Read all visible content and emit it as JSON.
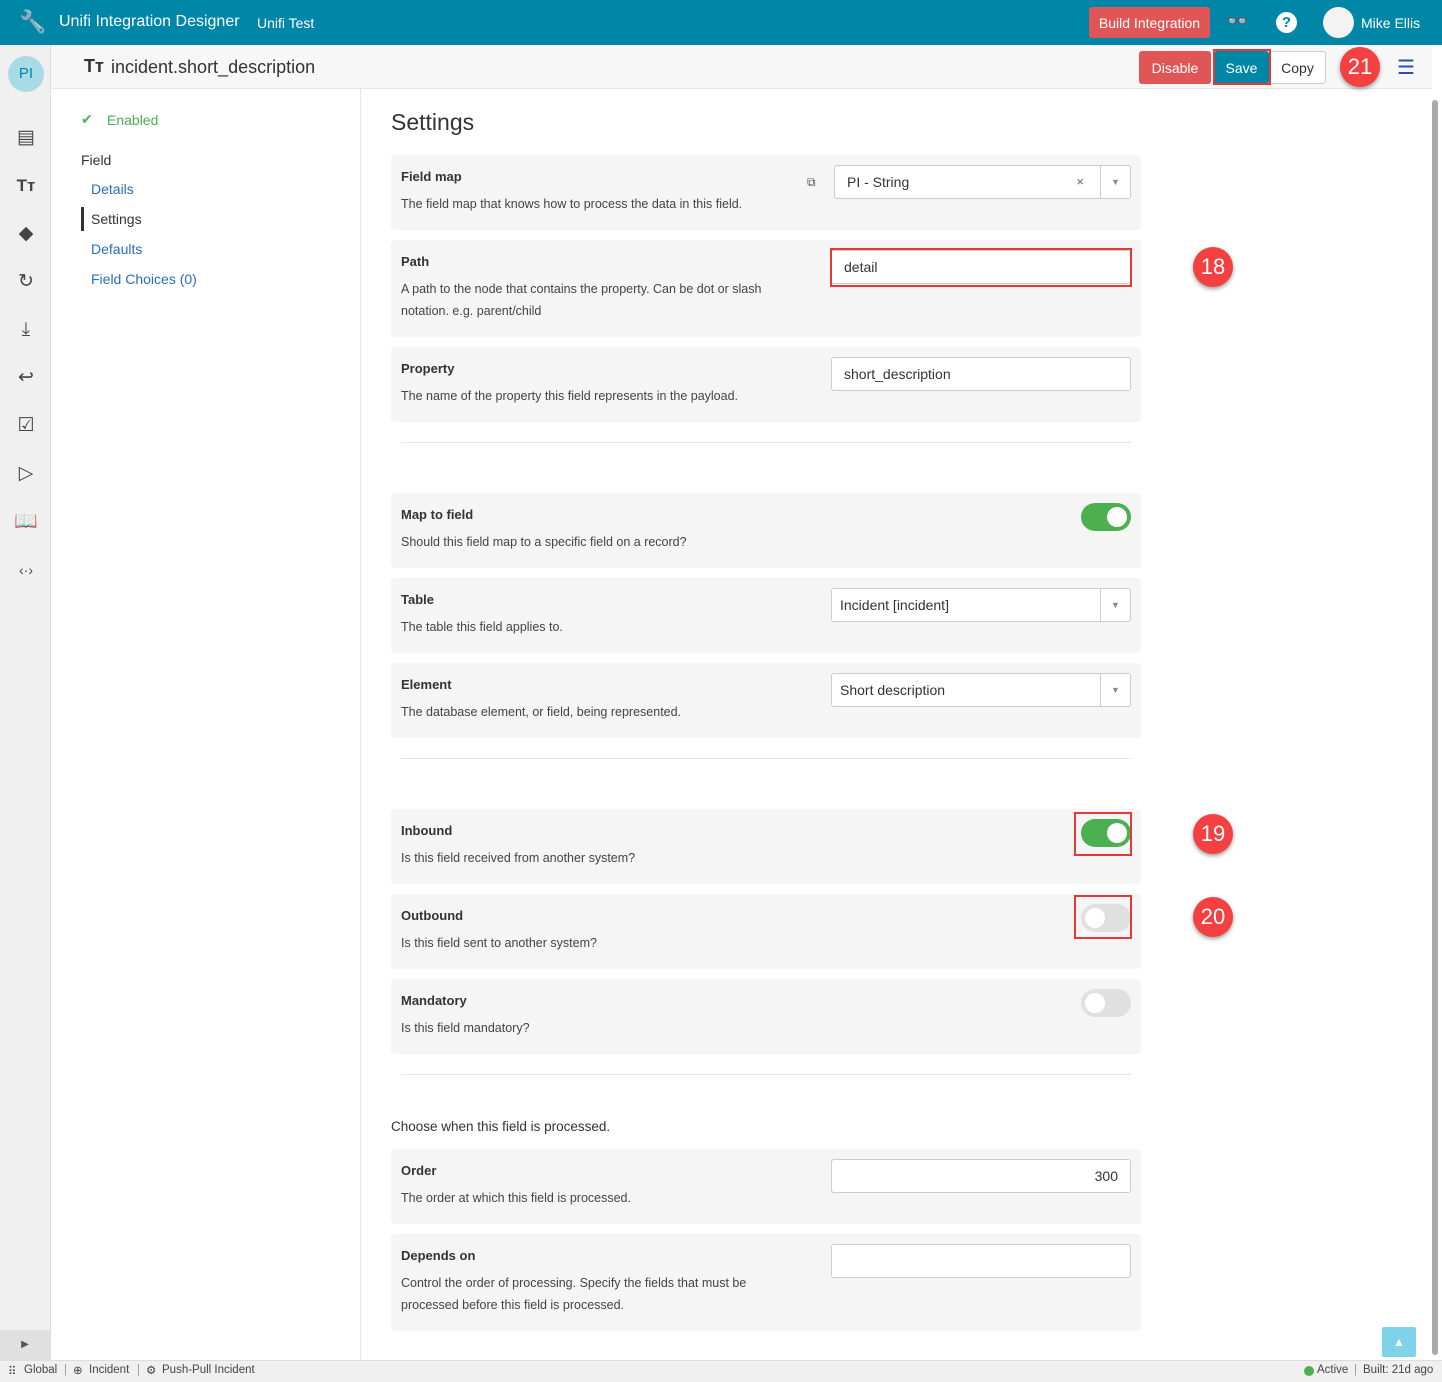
{
  "app": {
    "title": "Unifi Integration Designer",
    "subtitle": "Unifi Test",
    "build_label": "Build Integration",
    "user": "Mike Ellis",
    "avatar_initials": "PI"
  },
  "header": {
    "title": "incident.short_description",
    "disable": "Disable",
    "save": "Save",
    "copy": "Copy"
  },
  "nav": {
    "status": "Enabled",
    "section": "Field",
    "items": [
      "Details",
      "Settings",
      "Defaults",
      "Field Choices (0)"
    ],
    "active": "Settings"
  },
  "main": {
    "heading": "Settings",
    "field_map": {
      "label": "Field map",
      "desc": "The field map that knows how to process the data in this field.",
      "value": "PI - String"
    },
    "path": {
      "label": "Path",
      "desc": "A path to the node that contains the property. Can be dot or slash notation. e.g. parent/child",
      "value": "detail"
    },
    "property": {
      "label": "Property",
      "desc": "The name of the property this field represents in the payload.",
      "value": "short_description"
    },
    "map_to_field": {
      "label": "Map to field",
      "desc": "Should this field map to a specific field on a record?",
      "on": true
    },
    "table": {
      "label": "Table",
      "desc": "The table this field applies to.",
      "value": "Incident [incident]"
    },
    "element": {
      "label": "Element",
      "desc": "The database element, or field, being represented.",
      "value": "Short description"
    },
    "inbound": {
      "label": "Inbound",
      "desc": "Is this field received from another system?",
      "on": true
    },
    "outbound": {
      "label": "Outbound",
      "desc": "Is this field sent to another system?",
      "on": false
    },
    "mandatory": {
      "label": "Mandatory",
      "desc": "Is this field mandatory?",
      "on": false
    },
    "process_note": "Choose when this field is processed.",
    "order": {
      "label": "Order",
      "desc": "The order at which this field is processed.",
      "value": "300"
    },
    "depends_on": {
      "label": "Depends on",
      "desc": "Control the order of processing. Specify the fields that must be processed before this field is processed.",
      "value": ""
    }
  },
  "annotations": [
    "18",
    "19",
    "20",
    "21"
  ],
  "status_bar": {
    "scope": "Global",
    "table": "Incident",
    "process": "Push-Pull Incident",
    "state": "Active",
    "built": "Built: 21d ago"
  },
  "colors": {
    "topbar": "#0086a7",
    "danger": "#e05555",
    "toggle_on": "#4caf50",
    "link": "#2a6ebb",
    "annotation": "#e53935"
  }
}
